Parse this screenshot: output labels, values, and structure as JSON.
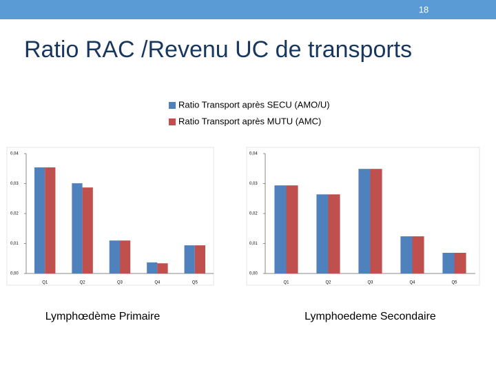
{
  "slide_number": "18",
  "title": "Ratio RAC /Revenu UC de transports",
  "chart_data": [
    {
      "type": "bar",
      "caption": "Lymphœdème Primaire",
      "categories": [
        "Q1",
        "Q2",
        "Q3",
        "Q4",
        "Q5"
      ],
      "series": [
        {
          "name": "Ratio Transport après SECU   (AMO/U)",
          "color": "#4f81bd",
          "values": [
            0.0354,
            0.0301,
            0.011,
            0.0037,
            0.0094
          ]
        },
        {
          "name": "Ratio Transport après MUTU  (AMC)",
          "color": "#c0504d",
          "values": [
            0.0354,
            0.0287,
            0.011,
            0.0034,
            0.0094
          ]
        }
      ],
      "ylim": [
        0,
        0.04
      ],
      "yticks": [
        {
          "value": 0,
          "label": "0,00"
        },
        {
          "value": 0.01,
          "label": "0,01"
        },
        {
          "value": 0.02,
          "label": "0,02"
        },
        {
          "value": 0.03,
          "label": "0,03"
        },
        {
          "value": 0.04,
          "label": "0,04"
        }
      ]
    },
    {
      "type": "bar",
      "caption": "Lymphoedeme Secondaire",
      "categories": [
        "Q1",
        "Q2",
        "Q3",
        "Q4",
        "Q5"
      ],
      "series": [
        {
          "color": "#4f81bd",
          "values": [
            0.0294,
            0.0264,
            0.0349,
            0.0124,
            0.0069
          ]
        },
        {
          "color": "#c0504d",
          "values": [
            0.0294,
            0.0264,
            0.0349,
            0.0124,
            0.0069
          ]
        }
      ],
      "ylim": [
        0,
        0.04
      ],
      "yticks": [
        {
          "value": 0,
          "label": "0,00"
        },
        {
          "value": 0.01,
          "label": "0,01"
        },
        {
          "value": 0.02,
          "label": "0,02"
        },
        {
          "value": 0.03,
          "label": "0,03"
        },
        {
          "value": 0.04,
          "label": "0,04"
        }
      ]
    }
  ]
}
